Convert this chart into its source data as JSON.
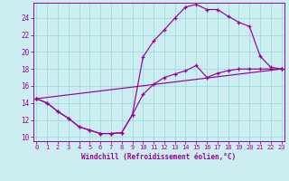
{
  "bg_color": "#cceef0",
  "grid_color": "#99dddd",
  "line_color": "#990099",
  "xlim_min": -0.3,
  "xlim_max": 23.3,
  "ylim_min": 9.5,
  "ylim_max": 25.8,
  "xticks": [
    0,
    1,
    2,
    3,
    4,
    5,
    6,
    7,
    8,
    9,
    10,
    11,
    12,
    13,
    14,
    15,
    16,
    17,
    18,
    19,
    20,
    21,
    22,
    23
  ],
  "yticks": [
    10,
    12,
    14,
    16,
    18,
    20,
    22,
    24
  ],
  "xlabel": "Windchill (Refroidissement éolien,°C)",
  "line1_x": [
    0,
    1,
    2,
    3,
    4,
    5,
    6,
    7,
    8,
    9,
    10,
    11,
    12,
    13,
    14,
    15,
    16,
    17,
    18,
    19,
    20,
    21,
    22,
    23
  ],
  "line1_y": [
    14.5,
    14.0,
    13.0,
    12.2,
    11.2,
    10.8,
    10.4,
    10.4,
    10.5,
    12.6,
    19.4,
    21.3,
    22.6,
    24.0,
    25.3,
    25.6,
    25.0,
    25.0,
    24.2,
    23.5,
    23.0,
    19.5,
    18.2,
    18.0
  ],
  "line2_x": [
    0,
    1,
    2,
    3,
    4,
    5,
    6,
    7,
    8,
    9,
    10,
    11,
    12,
    13,
    14,
    15,
    16,
    17,
    18,
    19,
    20,
    21,
    22,
    23
  ],
  "line2_y": [
    14.5,
    14.0,
    13.0,
    12.2,
    11.2,
    10.8,
    10.4,
    10.4,
    10.5,
    12.6,
    15.0,
    16.2,
    17.0,
    17.4,
    17.8,
    18.4,
    17.0,
    17.5,
    17.8,
    18.0,
    18.0,
    18.0,
    18.0,
    18.0
  ],
  "line3_x": [
    0,
    23
  ],
  "line3_y": [
    14.5,
    18.0
  ]
}
